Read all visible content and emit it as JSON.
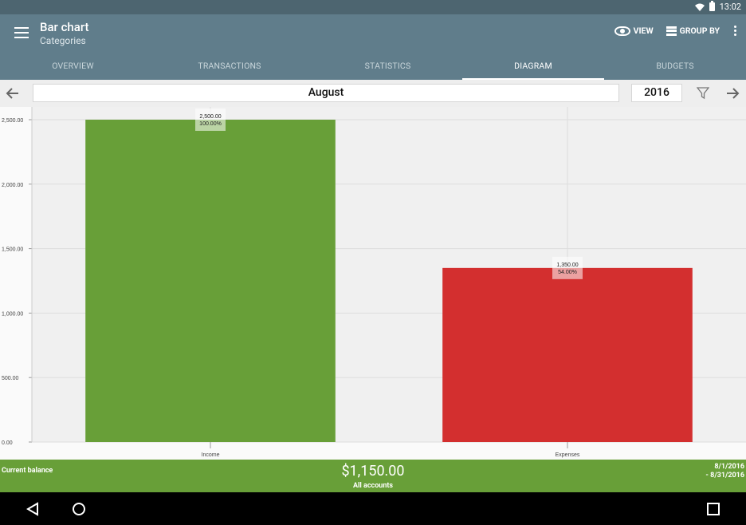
{
  "status_bar": {
    "time": "13:02"
  },
  "toolbar": {
    "title": "Bar chart",
    "subtitle": "Categories",
    "view_label": "VIEW",
    "group_by_label": "GROUP BY"
  },
  "tabs": [
    {
      "label": "OVERVIEW",
      "active": false
    },
    {
      "label": "TRANSACTIONS",
      "active": false
    },
    {
      "label": "STATISTICS",
      "active": false
    },
    {
      "label": "DIAGRAM",
      "active": true
    },
    {
      "label": "BUDGETS",
      "active": false
    }
  ],
  "period": {
    "month": "August",
    "year": "2016"
  },
  "chart_data": {
    "type": "bar",
    "categories": [
      "Income",
      "Expenses"
    ],
    "values": [
      2500,
      1350
    ],
    "value_labels": [
      "2,500.00",
      "1,350.00"
    ],
    "percent_labels": [
      "100.00%",
      "54.00%"
    ],
    "colors": [
      "#689f38",
      "#d32f2f"
    ],
    "yticks": [
      "0.00",
      "500.00",
      "1,000.00",
      "1,500.00",
      "2,000.00",
      "2,500.00"
    ],
    "ylim": [
      0,
      2500
    ],
    "grid": true
  },
  "balance": {
    "label": "Current balance",
    "amount": "$1,150.00",
    "accounts": "All accounts",
    "date_from": "8/1/2016",
    "date_to": "- 8/31/2016"
  },
  "colors": {
    "status_bar": "#4d6570",
    "toolbar": "#607d8b",
    "income": "#689f38",
    "expenses": "#d32f2f",
    "balance_bar": "#689f38"
  }
}
